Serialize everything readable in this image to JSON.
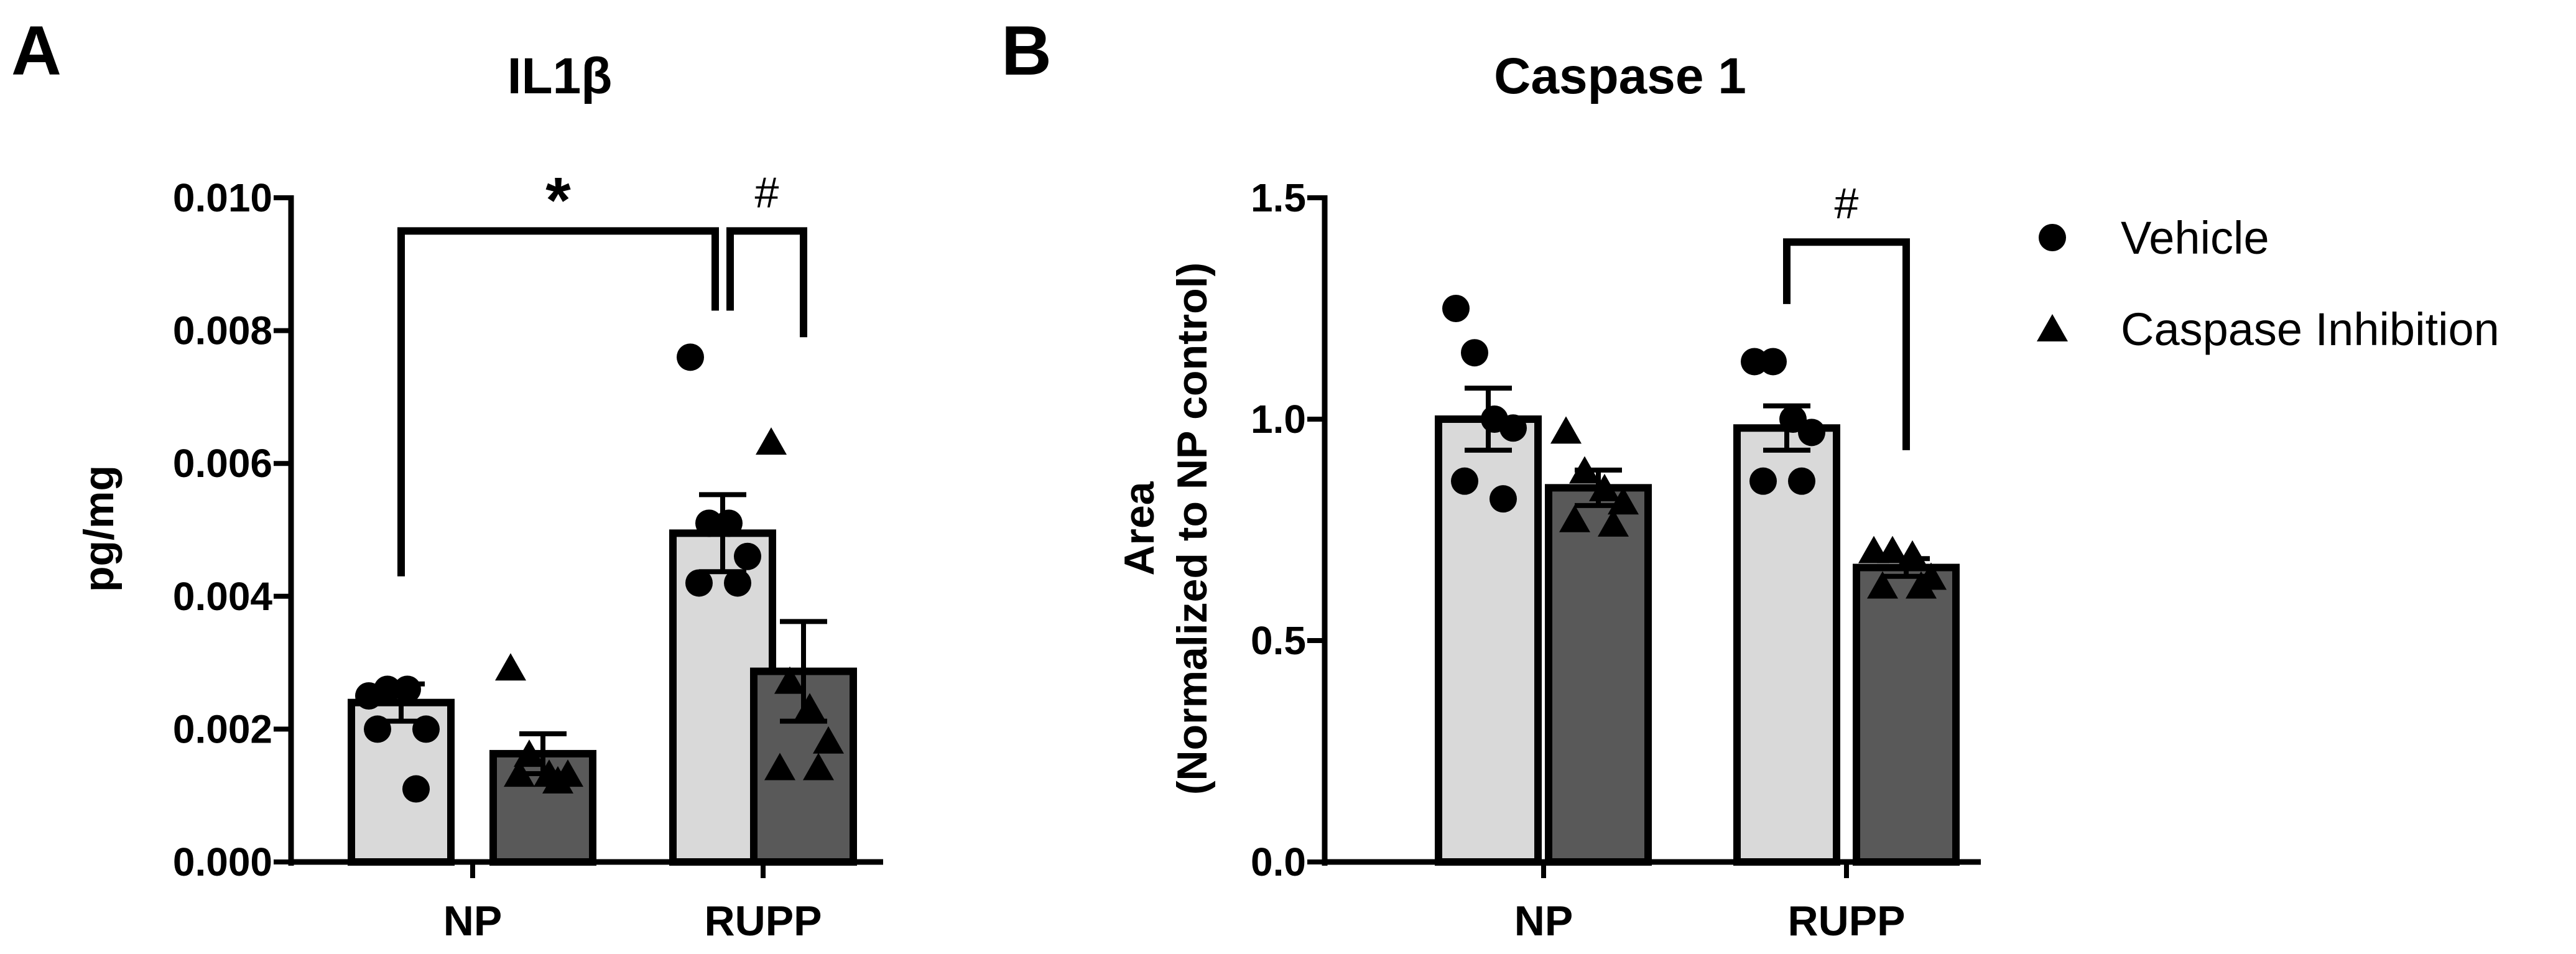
{
  "colors": {
    "vehicle_bar": "#d9d9d9",
    "inhibition_bar": "#595959",
    "ink": "#000000"
  },
  "legend": {
    "position": "right",
    "items": [
      {
        "label": "Vehicle",
        "marker": "circle"
      },
      {
        "label": "Caspase Inhibition",
        "marker": "triangle"
      }
    ]
  },
  "chart_data": [
    {
      "panel": "A",
      "type": "bar",
      "title": "IL1β",
      "xlabel": "",
      "ylabel": "pg/mg",
      "categories": [
        "NP",
        "RUPP"
      ],
      "ylim": [
        0,
        0.01
      ],
      "yticks": [
        0.0,
        0.002,
        0.004,
        0.006,
        0.008,
        0.01
      ],
      "ytick_labels": [
        "0.000",
        "0.002",
        "0.004",
        "0.006",
        "0.008",
        "0.010"
      ],
      "series": [
        {
          "name": "Vehicle",
          "marker": "circle",
          "values": [
            0.0024,
            0.00495
          ],
          "sem": [
            0.00028,
            0.00058
          ],
          "points": [
            [
              0.0025,
              0.0026,
              0.0026,
              0.002,
              0.002,
              0.0011
            ],
            [
              0.0076,
              0.0051,
              0.0051,
              0.0046,
              0.0042,
              0.0042
            ]
          ]
        },
        {
          "name": "Caspase Inhibition",
          "marker": "triangle",
          "values": [
            0.00163,
            0.00287
          ],
          "sem": [
            0.0003,
            0.00075
          ],
          "points": [
            [
              0.0029,
              0.0016,
              0.0013,
              0.0013,
              0.0013,
              0.0012
            ],
            [
              0.0063,
              0.0027,
              0.0023,
              0.0018,
              0.0014,
              0.0014
            ]
          ]
        }
      ],
      "significance": [
        {
          "label": "*",
          "from": "NP Vehicle",
          "to": "RUPP Vehicle",
          "y": 0.0095
        },
        {
          "label": "#",
          "from": "RUPP Vehicle",
          "to": "RUPP Caspase Inhibition",
          "y": 0.0095
        }
      ]
    },
    {
      "panel": "B",
      "type": "bar",
      "title": "Caspase 1",
      "xlabel": "",
      "ylabel": "Area",
      "ylabel_line2": "(Normalized to NP control)",
      "categories": [
        "NP",
        "RUPP"
      ],
      "ylim": [
        0,
        1.5
      ],
      "yticks": [
        0.0,
        0.5,
        1.0,
        1.5
      ],
      "ytick_labels": [
        "0.0",
        "0.5",
        "1.0",
        "1.5"
      ],
      "series": [
        {
          "name": "Vehicle",
          "marker": "circle",
          "values": [
            1.0,
            0.98
          ],
          "sem": [
            0.07,
            0.05
          ],
          "points": [
            [
              1.25,
              1.15,
              1.0,
              0.98,
              0.86,
              0.82
            ],
            [
              1.13,
              1.13,
              1.0,
              0.97,
              0.86,
              0.86
            ]
          ]
        },
        {
          "name": "Caspase Inhibition",
          "marker": "triangle",
          "values": [
            0.845,
            0.665
          ],
          "sem": [
            0.04,
            0.02
          ],
          "points": [
            [
              0.97,
              0.88,
              0.84,
              0.81,
              0.77,
              0.76
            ],
            [
              0.7,
              0.7,
              0.69,
              0.64,
              0.62,
              0.62
            ]
          ]
        }
      ],
      "significance": [
        {
          "label": "#",
          "from": "RUPP Vehicle",
          "to": "RUPP Caspase Inhibition",
          "y": 1.4
        }
      ]
    }
  ]
}
